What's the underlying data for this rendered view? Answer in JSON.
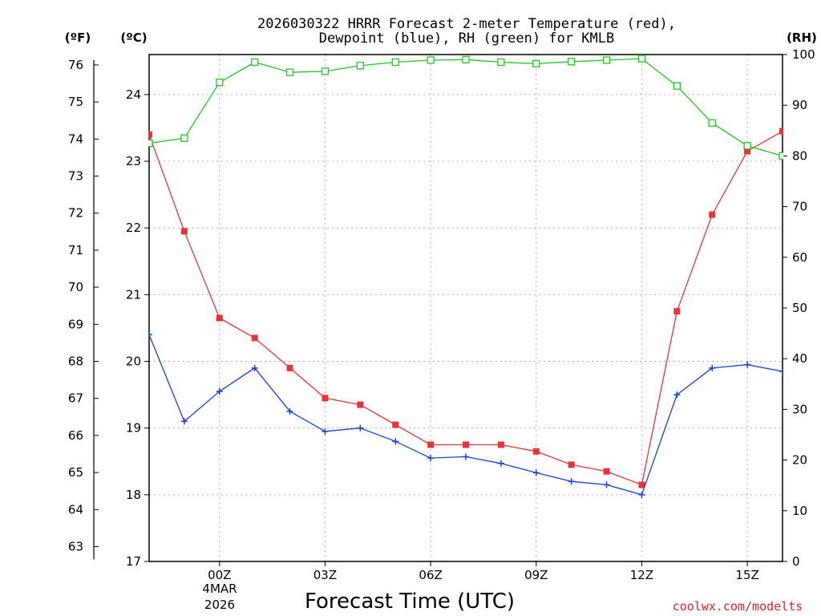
{
  "chart_data": {
    "type": "line",
    "title_line1": "2026030322 HRRR Forecast 2-meter Temperature (red),",
    "title_line2": "Dewpoint (blue), RH (green) for KMLB",
    "xlabel": "Forecast Time (UTC)",
    "credit": "coolwx.com/modelts",
    "unit_f": "(ºF)",
    "unit_c": "(ºC)",
    "unit_rh": "(RH)",
    "date_day": "4MAR",
    "date_year": "2026",
    "x_hours": [
      -2,
      -1,
      0,
      1,
      2,
      3,
      4,
      5,
      6,
      7,
      8,
      9,
      10,
      11,
      12,
      13,
      14,
      15,
      16
    ],
    "x_range_hours": [
      -2,
      16
    ],
    "x_ticks": [
      {
        "hour": 0,
        "label": "00Z"
      },
      {
        "hour": 3,
        "label": "03Z"
      },
      {
        "hour": 6,
        "label": "06Z"
      },
      {
        "hour": 9,
        "label": "09Z"
      },
      {
        "hour": 12,
        "label": "12Z"
      },
      {
        "hour": 15,
        "label": "15Z"
      }
    ],
    "celsius_range": [
      17,
      24.6
    ],
    "celsius_ticks": [
      17,
      18,
      19,
      20,
      21,
      22,
      23,
      24
    ],
    "fahrenheit_ticks": [
      63,
      64,
      65,
      66,
      67,
      68,
      69,
      70,
      71,
      72,
      73,
      74,
      75,
      76
    ],
    "rh_range": [
      0,
      100
    ],
    "rh_ticks": [
      0,
      10,
      20,
      30,
      40,
      50,
      60,
      70,
      80,
      90,
      100
    ],
    "series": [
      {
        "name": "2-meter Temperature",
        "axis": "celsius",
        "color": "#e8333a",
        "marker": "filled-square",
        "values": [
          23.4,
          21.95,
          20.65,
          20.35,
          19.9,
          19.45,
          19.35,
          19.05,
          18.75,
          18.75,
          18.75,
          18.65,
          18.45,
          18.35,
          18.15,
          20.75,
          22.2,
          23.15,
          23.45
        ]
      },
      {
        "name": "Dewpoint",
        "axis": "celsius",
        "color": "#1a3de0",
        "marker": "plus",
        "values": [
          20.4,
          19.1,
          19.55,
          19.9,
          19.25,
          18.95,
          19.0,
          18.8,
          18.55,
          18.57,
          18.47,
          18.33,
          18.2,
          18.15,
          18.0,
          19.5,
          19.9,
          19.95,
          19.85
        ]
      },
      {
        "name": "RH",
        "axis": "rh",
        "color": "#22c622",
        "marker": "open-square",
        "values": [
          82.5,
          83.5,
          94.5,
          98.5,
          96.5,
          96.7,
          97.8,
          98.5,
          98.9,
          99.0,
          98.5,
          98.2,
          98.6,
          98.9,
          99.2,
          93.8,
          86.5,
          82.0,
          80.0
        ]
      }
    ]
  }
}
